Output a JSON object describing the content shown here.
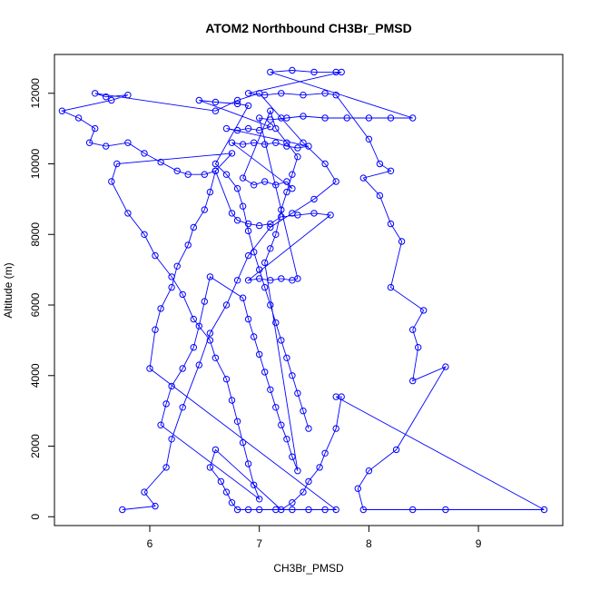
{
  "chart_data": {
    "type": "scatter",
    "title": "ATOM2 Northbound CH3Br_PMSD",
    "xlabel": "CH3Br_PMSD",
    "ylabel": "Altitude (m)",
    "xlim": [
      5.13,
      9.77
    ],
    "ylim": [
      -250,
      13100
    ],
    "x_ticks": [
      "6",
      "7",
      "8",
      "9"
    ],
    "x_tick_values": [
      6,
      7,
      8,
      9
    ],
    "y_ticks": [
      "0",
      "2000",
      "4000",
      "6000",
      "8000",
      "10000",
      "12000"
    ],
    "y_tick_values": [
      0,
      2000,
      4000,
      6000,
      8000,
      10000,
      12000
    ],
    "grid": false,
    "colors": {
      "series": "#0000ff",
      "axis": "#000000"
    },
    "series": [
      {
        "values": [
          [
            5.75,
            200
          ],
          [
            6.05,
            300
          ],
          [
            5.95,
            700
          ],
          [
            6.15,
            1400
          ],
          [
            6.2,
            2200
          ],
          [
            6.3,
            3100
          ],
          [
            6.45,
            4300
          ],
          [
            6.55,
            5200
          ],
          [
            6.7,
            6000
          ],
          [
            6.8,
            6700
          ],
          [
            6.9,
            7400
          ],
          [
            7.1,
            8200
          ],
          [
            7.3,
            8600
          ],
          [
            7.5,
            9000
          ],
          [
            7.7,
            9500
          ],
          [
            7.6,
            10000
          ],
          [
            7.4,
            10600
          ],
          [
            7.2,
            11300
          ],
          [
            7.0,
            12000
          ],
          [
            6.8,
            11800
          ],
          [
            6.6,
            11500
          ],
          [
            5.5,
            12000
          ],
          [
            5.6,
            11900
          ],
          [
            5.8,
            11950
          ],
          [
            5.65,
            11800
          ],
          [
            5.2,
            11500
          ],
          [
            5.35,
            11300
          ],
          [
            5.5,
            11000
          ],
          [
            5.45,
            10600
          ],
          [
            5.6,
            10500
          ],
          [
            5.8,
            10600
          ],
          [
            5.95,
            10300
          ],
          [
            6.1,
            10050
          ],
          [
            6.25,
            9800
          ],
          [
            6.35,
            9700
          ],
          [
            6.5,
            9700
          ],
          [
            6.6,
            9800
          ],
          [
            6.75,
            8600
          ],
          [
            6.8,
            8400
          ],
          [
            6.9,
            8300
          ],
          [
            7.0,
            8250
          ],
          [
            7.1,
            8300
          ],
          [
            7.2,
            8500
          ],
          [
            7.35,
            8550
          ],
          [
            7.5,
            8600
          ],
          [
            7.65,
            8550
          ],
          [
            6.9,
            6700
          ],
          [
            7.0,
            6750
          ],
          [
            7.1,
            6700
          ],
          [
            7.2,
            6750
          ],
          [
            7.3,
            6700
          ],
          [
            7.35,
            6750
          ],
          [
            7.0,
            11300
          ],
          [
            7.1,
            11250
          ],
          [
            7.25,
            11300
          ],
          [
            7.4,
            11350
          ],
          [
            7.6,
            11300
          ],
          [
            7.8,
            11300
          ],
          [
            8.0,
            11300
          ],
          [
            8.2,
            11300
          ],
          [
            8.4,
            11300
          ],
          [
            7.1,
            12600
          ],
          [
            7.3,
            12650
          ],
          [
            7.5,
            12600
          ],
          [
            7.7,
            12600
          ],
          [
            7.75,
            12600
          ],
          [
            6.9,
            12000
          ],
          [
            7.05,
            11950
          ],
          [
            7.2,
            12000
          ],
          [
            7.4,
            11950
          ],
          [
            7.6,
            12000
          ],
          [
            7.7,
            11950
          ],
          [
            8.0,
            10700
          ],
          [
            8.1,
            10000
          ],
          [
            8.2,
            9800
          ],
          [
            7.95,
            9600
          ],
          [
            8.1,
            9100
          ],
          [
            8.2,
            8300
          ],
          [
            8.3,
            7800
          ],
          [
            8.2,
            6500
          ],
          [
            8.5,
            5850
          ],
          [
            8.4,
            5300
          ],
          [
            8.45,
            4800
          ],
          [
            8.4,
            3850
          ],
          [
            8.7,
            4250
          ],
          [
            8.25,
            1900
          ],
          [
            8.0,
            1300
          ],
          [
            7.9,
            800
          ],
          [
            7.95,
            200
          ],
          [
            8.4,
            200
          ],
          [
            8.7,
            200
          ],
          [
            9.6,
            200
          ],
          [
            7.7,
            3400
          ],
          [
            7.75,
            3400
          ],
          [
            7.7,
            2500
          ],
          [
            7.6,
            1800
          ],
          [
            7.55,
            1400
          ],
          [
            7.45,
            1000
          ],
          [
            7.4,
            700
          ],
          [
            7.3,
            400
          ],
          [
            7.2,
            200
          ],
          [
            6.6,
            1900
          ],
          [
            6.55,
            1400
          ],
          [
            6.65,
            1000
          ],
          [
            6.7,
            700
          ],
          [
            6.75,
            400
          ],
          [
            6.8,
            200
          ],
          [
            6.9,
            200
          ],
          [
            7.0,
            200
          ],
          [
            7.15,
            200
          ],
          [
            7.3,
            200
          ],
          [
            7.45,
            200
          ],
          [
            7.6,
            200
          ],
          [
            7.7,
            200
          ],
          [
            6.0,
            4200
          ],
          [
            6.05,
            5300
          ],
          [
            6.1,
            5900
          ],
          [
            6.2,
            6500
          ],
          [
            6.25,
            7100
          ],
          [
            6.35,
            7700
          ],
          [
            6.4,
            8200
          ],
          [
            6.5,
            8700
          ],
          [
            6.55,
            9200
          ],
          [
            6.6,
            9800
          ],
          [
            6.75,
            10300
          ],
          [
            5.7,
            10000
          ],
          [
            5.65,
            9500
          ],
          [
            5.8,
            8600
          ],
          [
            5.95,
            8000
          ],
          [
            6.05,
            7400
          ],
          [
            6.2,
            6800
          ],
          [
            6.3,
            6300
          ],
          [
            6.4,
            5600
          ],
          [
            6.55,
            5000
          ],
          [
            6.6,
            4500
          ],
          [
            6.7,
            3900
          ],
          [
            6.75,
            3300
          ],
          [
            6.8,
            2700
          ],
          [
            6.85,
            2100
          ],
          [
            6.9,
            1500
          ],
          [
            6.95,
            900
          ],
          [
            7.0,
            500
          ],
          [
            6.1,
            2600
          ],
          [
            6.15,
            3200
          ],
          [
            6.2,
            3700
          ],
          [
            6.3,
            4200
          ],
          [
            6.4,
            4800
          ],
          [
            6.45,
            5400
          ],
          [
            6.5,
            6100
          ],
          [
            6.55,
            6800
          ],
          [
            6.85,
            6200
          ],
          [
            6.9,
            5600
          ],
          [
            6.95,
            5100
          ],
          [
            7.0,
            4600
          ],
          [
            7.05,
            4100
          ],
          [
            7.1,
            3600
          ],
          [
            7.15,
            3100
          ],
          [
            7.2,
            2600
          ],
          [
            7.25,
            2200
          ],
          [
            7.3,
            1700
          ],
          [
            7.35,
            1300
          ],
          [
            7.05,
            7200
          ],
          [
            7.1,
            7600
          ],
          [
            7.15,
            8000
          ],
          [
            7.2,
            8700
          ],
          [
            7.25,
            9200
          ],
          [
            7.3,
            9700
          ],
          [
            7.35,
            10200
          ],
          [
            7.25,
            10600
          ],
          [
            7.15,
            11000
          ],
          [
            7.1,
            11500
          ],
          [
            6.85,
            9600
          ],
          [
            6.95,
            9400
          ],
          [
            7.05,
            9500
          ],
          [
            7.15,
            9400
          ],
          [
            7.25,
            9500
          ],
          [
            7.3,
            9300
          ],
          [
            6.75,
            10600
          ],
          [
            6.85,
            10550
          ],
          [
            6.95,
            10600
          ],
          [
            7.05,
            10550
          ],
          [
            7.15,
            10600
          ],
          [
            7.25,
            10500
          ],
          [
            7.35,
            10450
          ],
          [
            7.45,
            10500
          ],
          [
            6.7,
            11000
          ],
          [
            6.8,
            10950
          ],
          [
            6.9,
            11000
          ],
          [
            7.0,
            10950
          ],
          [
            7.1,
            11050
          ],
          [
            6.45,
            11800
          ],
          [
            6.6,
            11750
          ],
          [
            6.8,
            11700
          ],
          [
            6.9,
            11650
          ],
          [
            6.6,
            10000
          ],
          [
            6.7,
            9700
          ],
          [
            6.8,
            9300
          ],
          [
            6.85,
            8800
          ],
          [
            6.9,
            8100
          ],
          [
            6.95,
            7500
          ],
          [
            7.0,
            7000
          ],
          [
            7.05,
            6500
          ],
          [
            7.1,
            6000
          ],
          [
            7.15,
            5500
          ],
          [
            7.2,
            5000
          ],
          [
            7.25,
            4500
          ],
          [
            7.3,
            4000
          ],
          [
            7.35,
            3500
          ],
          [
            7.4,
            3000
          ],
          [
            7.45,
            2500
          ]
        ]
      }
    ]
  }
}
